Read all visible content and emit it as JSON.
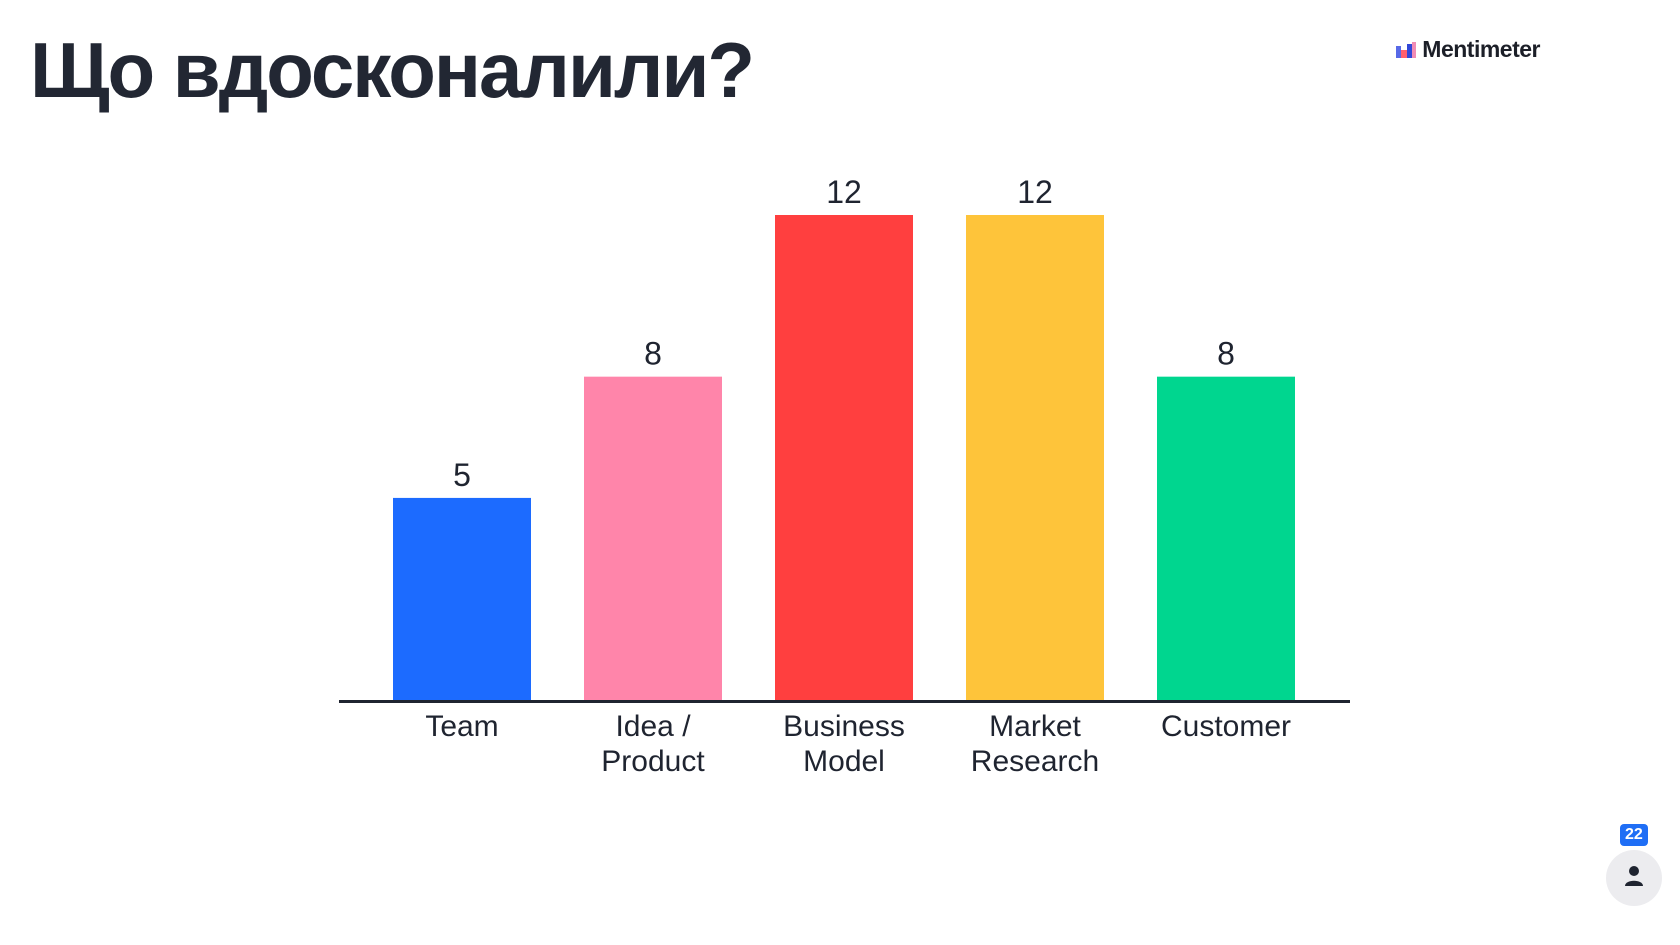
{
  "title": "Що вдосконалили?",
  "brand": {
    "name": "Mentimeter",
    "logo_icon": "mentimeter-logo-icon"
  },
  "participants": {
    "count": "22",
    "icon": "person-icon"
  },
  "chart_data": {
    "type": "bar",
    "categories": [
      [
        "Team"
      ],
      [
        "Idea /",
        "Product"
      ],
      [
        "Business",
        "Model"
      ],
      [
        "Market",
        "Research"
      ],
      [
        "Customer"
      ]
    ],
    "values": [
      5,
      8,
      12,
      12,
      8
    ],
    "colors": [
      "#1c6bff",
      "#ff85aa",
      "#ff3f3f",
      "#fec43a",
      "#00d68f"
    ],
    "ylim": [
      0,
      12
    ],
    "grid": false,
    "legend": "none",
    "data_labels": true
  }
}
